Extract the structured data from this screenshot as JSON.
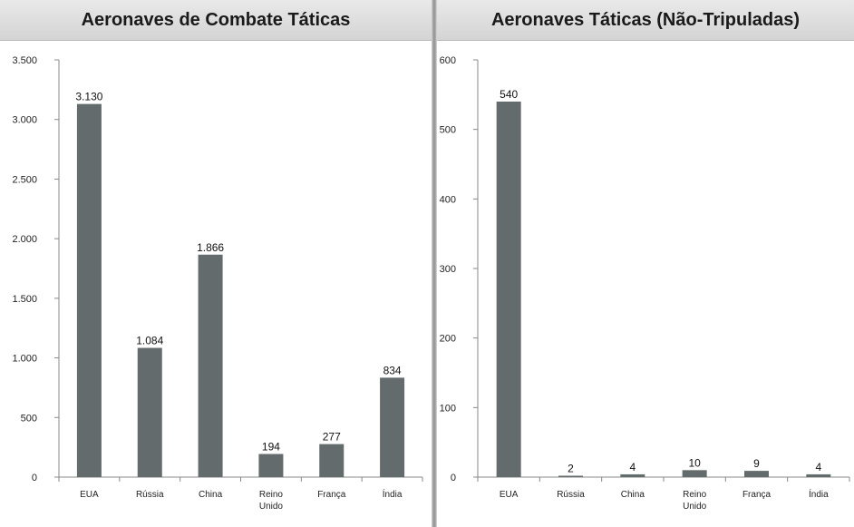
{
  "chart_data": [
    {
      "type": "bar",
      "title": "Aeronaves de Combate Táticas",
      "categories": [
        [
          "EUA"
        ],
        [
          "Rússia"
        ],
        [
          "China"
        ],
        [
          "Reino",
          "Unido"
        ],
        [
          "França"
        ],
        [
          "Índia"
        ]
      ],
      "values": [
        3130,
        1084,
        1866,
        194,
        277,
        834
      ],
      "value_labels": [
        "3.130",
        "1.084",
        "1.866",
        "194",
        "277",
        "834"
      ],
      "ylim": [
        0,
        3500
      ],
      "yticks": [
        0,
        500,
        1000,
        1500,
        2000,
        2500,
        3000,
        3500
      ],
      "ytick_labels": [
        "0",
        "500",
        "1.000",
        "1.500",
        "2.000",
        "2.500",
        "3.000",
        "3.500"
      ],
      "xlabel": "",
      "ylabel": "",
      "grid": false,
      "bar_color": "#636b6c"
    },
    {
      "type": "bar",
      "title": "Aeronaves Táticas (Não-Tripuladas)",
      "categories": [
        [
          "EUA"
        ],
        [
          "Rússia"
        ],
        [
          "China"
        ],
        [
          "Reino",
          "Unido"
        ],
        [
          "França"
        ],
        [
          "Índia"
        ]
      ],
      "values": [
        540,
        2,
        4,
        10,
        9,
        4
      ],
      "value_labels": [
        "540",
        "2",
        "4",
        "10",
        "9",
        "4"
      ],
      "ylim": [
        0,
        600
      ],
      "yticks": [
        0,
        100,
        200,
        300,
        400,
        500,
        600
      ],
      "ytick_labels": [
        "0",
        "100",
        "200",
        "300",
        "400",
        "500",
        "600"
      ],
      "xlabel": "",
      "ylabel": "",
      "grid": false,
      "bar_color": "#636b6c"
    }
  ]
}
